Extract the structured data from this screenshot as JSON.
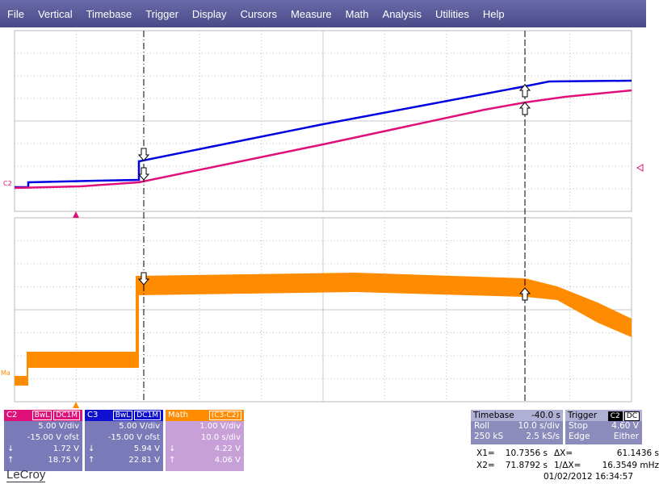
{
  "menu": [
    "File",
    "Vertical",
    "Timebase",
    "Trigger",
    "Display",
    "Cursors",
    "Measure",
    "Math",
    "Analysis",
    "Utilities",
    "Help"
  ],
  "trace_labels": {
    "top": "C2",
    "bottom": "Ma"
  },
  "channels": [
    {
      "name": "C2",
      "tags": [
        "BwL",
        "DC1M"
      ],
      "rows": [
        [
          "5.00 V/div"
        ],
        [
          "-15.00 V ofst"
        ],
        [
          "↓",
          "1.72 V"
        ],
        [
          "↑",
          "18.75 V"
        ]
      ]
    },
    {
      "name": "C3",
      "tags": [
        "BwL",
        "DC1M"
      ],
      "rows": [
        [
          "5.00 V/div"
        ],
        [
          "-15.00 V ofst"
        ],
        [
          "↓",
          "5.94 V"
        ],
        [
          "↑",
          "22.81 V"
        ]
      ]
    },
    {
      "name": "Math",
      "tags": [
        "(C3-C2)"
      ],
      "rows": [
        [
          "1.00 V/div"
        ],
        [
          "10.0 s/div"
        ],
        [
          "↓",
          "4.22 V"
        ],
        [
          "↑",
          "4.06 V"
        ]
      ]
    }
  ],
  "timebase": {
    "title": "Timebase",
    "value": "-40.0 s",
    "rows": [
      [
        "Roll",
        "10.0 s/div"
      ],
      [
        "250 kS",
        "2.5 kS/s"
      ]
    ]
  },
  "trigger": {
    "title": "Trigger",
    "tags": [
      "C2",
      "DC"
    ],
    "rows": [
      [
        "Stop",
        "4.60 V"
      ],
      [
        "Edge",
        "Either"
      ]
    ]
  },
  "cursors": [
    [
      "X1=",
      "10.7356 s",
      "ΔX=",
      "61.1436 s"
    ],
    [
      "X2=",
      "71.8792 s",
      "1/ΔX=",
      "16.3549 mHz"
    ]
  ],
  "footer": {
    "brand": "LeCroy",
    "timestamp": "01/02/2012 16:34:57"
  }
}
